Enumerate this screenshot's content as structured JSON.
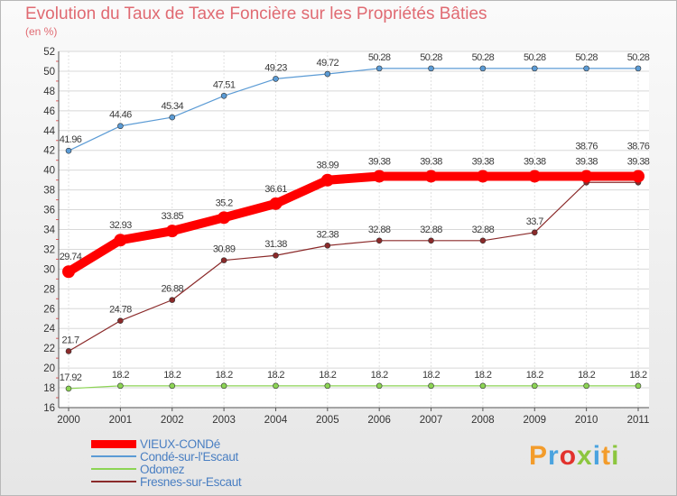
{
  "header": {
    "title": "Evolution du Taux de Taxe Foncière sur les Propriétés Bâties",
    "subtitle": "(en %)"
  },
  "logo": {
    "text": "Proxiti",
    "colors": [
      "#f39c2b",
      "#4aa3df",
      "#e2322d",
      "#8cc63f",
      "#4aa3df",
      "#f39c2b",
      "#8cc63f"
    ]
  },
  "chart_data": {
    "type": "line",
    "title": "Evolution du Taux de Taxe Foncière sur les Propriétés Bâties",
    "ylabel": "(en %)",
    "xlabel": "",
    "x": [
      "2000",
      "2001",
      "2002",
      "2003",
      "2004",
      "2005",
      "2006",
      "2007",
      "2008",
      "2009",
      "2010",
      "2011"
    ],
    "ylim": [
      16,
      52
    ],
    "yticks": [
      16,
      18,
      20,
      22,
      24,
      26,
      28,
      30,
      32,
      34,
      36,
      38,
      40,
      42,
      44,
      46,
      48,
      50,
      52
    ],
    "grid": true,
    "legend": "bottom-left",
    "series": [
      {
        "name": "VIEUX-CONDé",
        "color": "#ff0000",
        "emphasis": true,
        "values": [
          29.74,
          32.93,
          33.85,
          35.2,
          36.61,
          38.99,
          39.38,
          39.38,
          39.38,
          39.38,
          39.38,
          39.38
        ],
        "labels": [
          "29.74",
          "32.93",
          "33.85",
          "35.2",
          "36.61",
          "38.99",
          "39.38",
          "39.38",
          "39.38",
          "39.38",
          "39.38",
          "39.38"
        ]
      },
      {
        "name": "Condé-sur-l'Escaut",
        "color": "#5b9bd5",
        "values": [
          41.96,
          44.46,
          45.34,
          47.51,
          49.23,
          49.72,
          50.28,
          50.28,
          50.28,
          50.28,
          50.28,
          50.28
        ],
        "labels": [
          "41.96",
          "44.46",
          "45.34",
          "47.51",
          "49.23",
          "49.72",
          "50.28",
          "50.28",
          "50.28",
          "50.28",
          "50.28",
          "50.28"
        ]
      },
      {
        "name": "Odomez",
        "color": "#8cd454",
        "values": [
          17.92,
          18.2,
          18.2,
          18.2,
          18.2,
          18.2,
          18.2,
          18.2,
          18.2,
          18.2,
          18.2,
          18.2
        ],
        "labels": [
          "17.92",
          "18.2",
          "18.2",
          "18.2",
          "18.2",
          "18.2",
          "18.2",
          "18.2",
          "18.2",
          "18.2",
          "18.2",
          "18.2"
        ]
      },
      {
        "name": "Fresnes-sur-Escaut",
        "color": "#8b2a2a",
        "values": [
          21.7,
          24.78,
          26.88,
          30.89,
          31.38,
          32.38,
          32.88,
          32.88,
          32.88,
          33.7,
          38.76,
          38.76
        ],
        "labels": [
          "21.7",
          "24.78",
          "26.88",
          "30.89",
          "31.38",
          "32.38",
          "32.88",
          "32.88",
          "32.88",
          "33.7",
          "38.76",
          "38.76"
        ]
      }
    ]
  }
}
